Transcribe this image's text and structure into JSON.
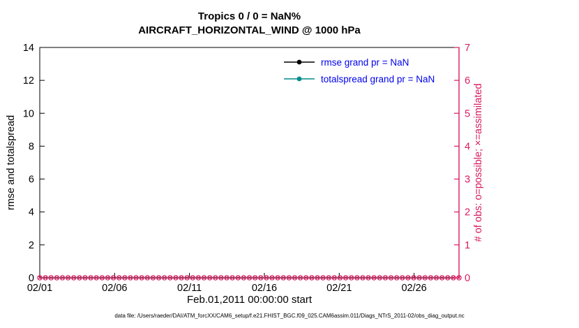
{
  "figure": {
    "footer": "data file: /Users/raeder/DAI/ATM_forcXX/CAM6_setup/f.e21.FHIST_BGC.f09_025.CAM6assim.011/Diags_NTrS_2011-02/obs_diag_output.nc"
  },
  "legend": {
    "text_color": "#0000ee"
  },
  "chart_data": {
    "type": "line",
    "title": "Tropics 0 / 0 = NaN%",
    "subtitle": "AIRCRAFT_HORIZONTAL_WIND @ 1000 hPa",
    "xlabel": "Feb.01,2011 00:00:00 start",
    "ylabel_left": "rmse and totalspread",
    "ylabel_right": "# of obs: o=possible; ×=assimilated",
    "region": "Tropics",
    "num_obs_possible": 0,
    "num_obs_assimilated": 0,
    "x_ticks": [
      "02/01",
      "02/06",
      "02/11",
      "02/16",
      "02/21",
      "02/26"
    ],
    "x_tick_days": [
      0,
      5,
      10,
      15,
      20,
      25
    ],
    "x_range_days": [
      0,
      28
    ],
    "ylim_left": [
      0,
      14
    ],
    "yticks_left": [
      0,
      2,
      4,
      6,
      8,
      10,
      12,
      14
    ],
    "ylim_right": [
      0,
      7
    ],
    "yticks_right": [
      0,
      1,
      2,
      3,
      4,
      5,
      6,
      7
    ],
    "grid": false,
    "legend_position": "top-center-inside",
    "series": [
      {
        "name": "rmse grand pr = NaN",
        "color": "#000000",
        "marker": "dot",
        "values": null,
        "note": "all values NaN (0/0 obs)"
      },
      {
        "name": "totalspread grand pr = NaN",
        "color": "#008b8b",
        "marker": "dot",
        "values": null,
        "note": "all values NaN (0/0 obs)"
      },
      {
        "name": "possible obs",
        "color": "#d81b60",
        "marker": "o",
        "constant_value": 0,
        "axis": "right"
      },
      {
        "name": "assimilated obs",
        "color": "#d81b60",
        "marker": "x",
        "constant_value": 0,
        "axis": "right"
      }
    ],
    "colors": {
      "obs": "#d81b60"
    },
    "obs_marker_count": 75
  }
}
